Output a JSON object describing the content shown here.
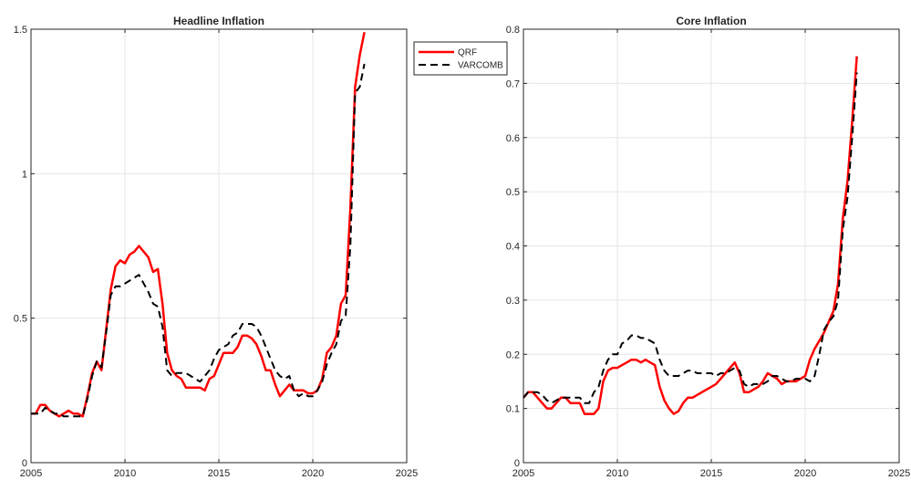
{
  "legend": {
    "items": [
      {
        "label": "QRF",
        "color": "#ff0000",
        "dash": "solid"
      },
      {
        "label": "VARCOMB",
        "color": "#000000",
        "dash": "dashed"
      }
    ]
  },
  "chart_data": [
    {
      "type": "line",
      "title": "Headline Inflation",
      "xlabel": "",
      "ylabel": "",
      "xlim": [
        2005,
        2025
      ],
      "ylim": [
        0,
        1.5
      ],
      "xticks": [
        2005,
        2010,
        2015,
        2020,
        2025
      ],
      "yticks": [
        0,
        0.5,
        1,
        1.5
      ],
      "ytick_labels": [
        "0",
        "0.5",
        "1",
        "1.5"
      ],
      "grid": true,
      "series": [
        {
          "name": "QRF",
          "color": "#ff0000",
          "style": "solid",
          "x": [
            2005.0,
            2005.25,
            2005.5,
            2005.75,
            2006.0,
            2006.25,
            2006.5,
            2006.75,
            2007.0,
            2007.25,
            2007.5,
            2007.75,
            2008.0,
            2008.25,
            2008.5,
            2008.75,
            2009.0,
            2009.25,
            2009.5,
            2009.75,
            2010.0,
            2010.25,
            2010.5,
            2010.75,
            2011.0,
            2011.25,
            2011.5,
            2011.75,
            2012.0,
            2012.25,
            2012.5,
            2012.75,
            2013.0,
            2013.25,
            2013.5,
            2013.75,
            2014.0,
            2014.25,
            2014.5,
            2014.75,
            2015.0,
            2015.25,
            2015.5,
            2015.75,
            2016.0,
            2016.25,
            2016.5,
            2016.75,
            2017.0,
            2017.25,
            2017.5,
            2017.75,
            2018.0,
            2018.25,
            2018.5,
            2018.75,
            2019.0,
            2019.25,
            2019.5,
            2019.75,
            2020.0,
            2020.25,
            2020.5,
            2020.75,
            2021.0,
            2021.25,
            2021.5,
            2021.75,
            2022.0,
            2022.25,
            2022.5,
            2022.75
          ],
          "y": [
            0.17,
            0.17,
            0.2,
            0.2,
            0.18,
            0.17,
            0.16,
            0.17,
            0.18,
            0.17,
            0.17,
            0.16,
            0.23,
            0.31,
            0.35,
            0.32,
            0.46,
            0.6,
            0.68,
            0.7,
            0.69,
            0.72,
            0.73,
            0.75,
            0.73,
            0.71,
            0.66,
            0.67,
            0.55,
            0.38,
            0.32,
            0.3,
            0.29,
            0.26,
            0.26,
            0.26,
            0.26,
            0.25,
            0.29,
            0.3,
            0.34,
            0.38,
            0.38,
            0.38,
            0.4,
            0.44,
            0.44,
            0.43,
            0.41,
            0.37,
            0.32,
            0.32,
            0.27,
            0.23,
            0.25,
            0.27,
            0.25,
            0.25,
            0.25,
            0.24,
            0.24,
            0.25,
            0.29,
            0.38,
            0.4,
            0.44,
            0.55,
            0.58,
            0.88,
            1.3,
            1.41,
            1.49
          ]
        },
        {
          "name": "VARCOMB",
          "color": "#000000",
          "style": "dashed",
          "x": [
            2005.0,
            2005.25,
            2005.5,
            2005.75,
            2006.0,
            2006.25,
            2006.5,
            2006.75,
            2007.0,
            2007.25,
            2007.5,
            2007.75,
            2008.0,
            2008.25,
            2008.5,
            2008.75,
            2009.0,
            2009.25,
            2009.5,
            2009.75,
            2010.0,
            2010.25,
            2010.5,
            2010.75,
            2011.0,
            2011.25,
            2011.5,
            2011.75,
            2012.0,
            2012.25,
            2012.5,
            2012.75,
            2013.0,
            2013.25,
            2013.5,
            2013.75,
            2014.0,
            2014.25,
            2014.5,
            2014.75,
            2015.0,
            2015.25,
            2015.5,
            2015.75,
            2016.0,
            2016.25,
            2016.5,
            2016.75,
            2017.0,
            2017.25,
            2017.5,
            2017.75,
            2018.0,
            2018.25,
            2018.5,
            2018.75,
            2019.0,
            2019.25,
            2019.5,
            2019.75,
            2020.0,
            2020.25,
            2020.5,
            2020.75,
            2021.0,
            2021.25,
            2021.5,
            2021.75,
            2022.0,
            2022.25,
            2022.5,
            2022.75
          ],
          "y": [
            0.17,
            0.17,
            0.17,
            0.19,
            0.18,
            0.17,
            0.17,
            0.16,
            0.16,
            0.16,
            0.16,
            0.16,
            0.22,
            0.3,
            0.35,
            0.33,
            0.45,
            0.58,
            0.61,
            0.61,
            0.62,
            0.63,
            0.64,
            0.65,
            0.62,
            0.59,
            0.55,
            0.54,
            0.47,
            0.32,
            0.3,
            0.31,
            0.31,
            0.31,
            0.3,
            0.29,
            0.28,
            0.3,
            0.32,
            0.36,
            0.39,
            0.4,
            0.41,
            0.44,
            0.45,
            0.48,
            0.48,
            0.48,
            0.47,
            0.44,
            0.4,
            0.36,
            0.32,
            0.3,
            0.29,
            0.3,
            0.25,
            0.23,
            0.24,
            0.23,
            0.23,
            0.25,
            0.28,
            0.34,
            0.38,
            0.41,
            0.49,
            0.51,
            0.75,
            1.28,
            1.3,
            1.38
          ]
        }
      ]
    },
    {
      "type": "line",
      "title": "Core Inflation",
      "xlabel": "",
      "ylabel": "",
      "xlim": [
        2005,
        2025
      ],
      "ylim": [
        0,
        0.8
      ],
      "xticks": [
        2005,
        2010,
        2015,
        2020,
        2025
      ],
      "yticks": [
        0,
        0.1,
        0.2,
        0.3,
        0.4,
        0.5,
        0.6,
        0.7,
        0.8
      ],
      "ytick_labels": [
        "0",
        "0.1",
        "0.2",
        "0.3",
        "0.4",
        "0.5",
        "0.6",
        "0.7",
        "0.8"
      ],
      "grid": true,
      "series": [
        {
          "name": "QRF",
          "color": "#ff0000",
          "style": "solid",
          "x": [
            2005.0,
            2005.25,
            2005.5,
            2005.75,
            2006.0,
            2006.25,
            2006.5,
            2006.75,
            2007.0,
            2007.25,
            2007.5,
            2007.75,
            2008.0,
            2008.25,
            2008.5,
            2008.75,
            2009.0,
            2009.25,
            2009.5,
            2009.75,
            2010.0,
            2010.25,
            2010.5,
            2010.75,
            2011.0,
            2011.25,
            2011.5,
            2011.75,
            2012.0,
            2012.25,
            2012.5,
            2012.75,
            2013.0,
            2013.25,
            2013.5,
            2013.75,
            2014.0,
            2014.25,
            2014.5,
            2014.75,
            2015.0,
            2015.25,
            2015.5,
            2015.75,
            2016.0,
            2016.25,
            2016.5,
            2016.75,
            2017.0,
            2017.25,
            2017.5,
            2017.75,
            2018.0,
            2018.25,
            2018.5,
            2018.75,
            2019.0,
            2019.25,
            2019.5,
            2019.75,
            2020.0,
            2020.25,
            2020.5,
            2020.75,
            2021.0,
            2021.25,
            2021.5,
            2021.75,
            2022.0,
            2022.25,
            2022.5,
            2022.75
          ],
          "y": [
            0.12,
            0.13,
            0.13,
            0.12,
            0.11,
            0.1,
            0.1,
            0.11,
            0.12,
            0.12,
            0.11,
            0.11,
            0.11,
            0.09,
            0.09,
            0.09,
            0.1,
            0.15,
            0.17,
            0.175,
            0.175,
            0.18,
            0.185,
            0.19,
            0.19,
            0.185,
            0.19,
            0.185,
            0.18,
            0.14,
            0.115,
            0.1,
            0.09,
            0.095,
            0.11,
            0.12,
            0.12,
            0.125,
            0.13,
            0.135,
            0.14,
            0.145,
            0.155,
            0.165,
            0.175,
            0.185,
            0.165,
            0.13,
            0.13,
            0.135,
            0.14,
            0.15,
            0.165,
            0.16,
            0.155,
            0.145,
            0.15,
            0.15,
            0.15,
            0.155,
            0.16,
            0.19,
            0.21,
            0.225,
            0.24,
            0.26,
            0.28,
            0.33,
            0.45,
            0.52,
            0.63,
            0.75
          ]
        },
        {
          "name": "VARCOMB",
          "color": "#000000",
          "style": "dashed",
          "x": [
            2005.0,
            2005.25,
            2005.5,
            2005.75,
            2006.0,
            2006.25,
            2006.5,
            2006.75,
            2007.0,
            2007.25,
            2007.5,
            2007.75,
            2008.0,
            2008.25,
            2008.5,
            2008.75,
            2009.0,
            2009.25,
            2009.5,
            2009.75,
            2010.0,
            2010.25,
            2010.5,
            2010.75,
            2011.0,
            2011.25,
            2011.5,
            2011.75,
            2012.0,
            2012.25,
            2012.5,
            2012.75,
            2013.0,
            2013.25,
            2013.5,
            2013.75,
            2014.0,
            2014.25,
            2014.5,
            2014.75,
            2015.0,
            2015.25,
            2015.5,
            2015.75,
            2016.0,
            2016.25,
            2016.5,
            2016.75,
            2017.0,
            2017.25,
            2017.5,
            2017.75,
            2018.0,
            2018.25,
            2018.5,
            2018.75,
            2019.0,
            2019.25,
            2019.5,
            2019.75,
            2020.0,
            2020.25,
            2020.5,
            2020.75,
            2021.0,
            2021.25,
            2021.5,
            2021.75,
            2022.0,
            2022.25,
            2022.5,
            2022.75
          ],
          "y": [
            0.12,
            0.13,
            0.13,
            0.13,
            0.125,
            0.115,
            0.11,
            0.115,
            0.12,
            0.12,
            0.12,
            0.12,
            0.12,
            0.11,
            0.11,
            0.13,
            0.14,
            0.17,
            0.19,
            0.2,
            0.2,
            0.22,
            0.225,
            0.235,
            0.235,
            0.23,
            0.23,
            0.225,
            0.22,
            0.19,
            0.17,
            0.16,
            0.16,
            0.16,
            0.165,
            0.17,
            0.17,
            0.165,
            0.165,
            0.165,
            0.165,
            0.16,
            0.165,
            0.165,
            0.17,
            0.175,
            0.17,
            0.145,
            0.14,
            0.145,
            0.145,
            0.145,
            0.15,
            0.16,
            0.16,
            0.155,
            0.15,
            0.15,
            0.155,
            0.155,
            0.155,
            0.15,
            0.16,
            0.2,
            0.245,
            0.26,
            0.27,
            0.3,
            0.43,
            0.49,
            0.6,
            0.72
          ]
        }
      ]
    }
  ]
}
